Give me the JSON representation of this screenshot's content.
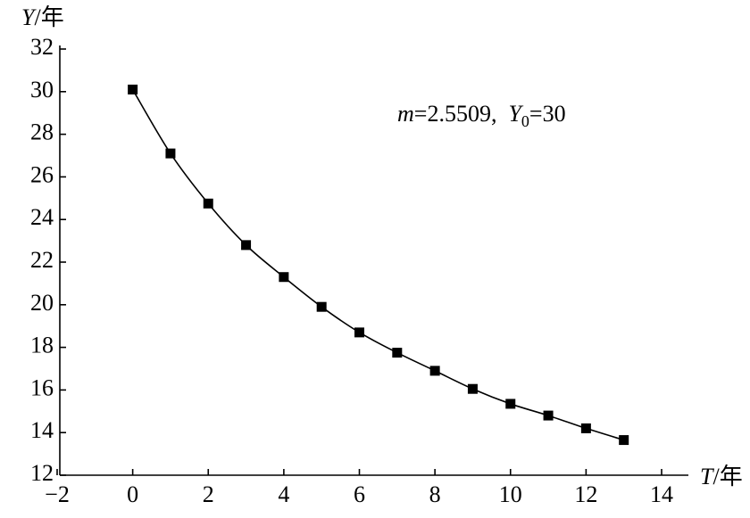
{
  "chart_data": {
    "type": "line",
    "x": [
      0,
      1,
      2,
      3,
      4,
      5,
      6,
      7,
      8,
      9,
      10,
      11,
      12,
      13
    ],
    "values": [
      30.1,
      27.1,
      24.75,
      22.8,
      21.3,
      19.9,
      18.7,
      17.75,
      16.9,
      16.05,
      15.35,
      14.8,
      14.2,
      13.65
    ],
    "color": "#000000",
    "marker": "square",
    "smooth": true,
    "xlim": [
      -2,
      14
    ],
    "xticks": [
      {
        "value": -2,
        "label": "−2"
      },
      0,
      2,
      4,
      6,
      8,
      10,
      12,
      14
    ],
    "ylim": [
      12,
      32
    ],
    "yticks": [
      12,
      14,
      16,
      18,
      20,
      22,
      24,
      26,
      28,
      30,
      32
    ],
    "grid": false,
    "x_label": [
      "T",
      "/年"
    ],
    "y_label": [
      "Y",
      "/年"
    ],
    "annotation": [
      "m",
      "=2.5509,  ",
      "Y",
      "0",
      "=30"
    ]
  }
}
